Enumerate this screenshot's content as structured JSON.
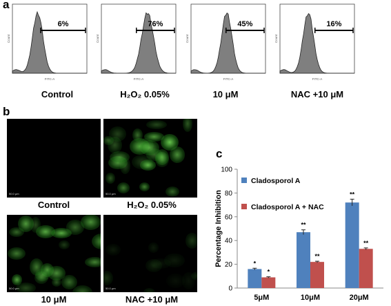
{
  "panel_a": {
    "letter": "a",
    "histograms": [
      {
        "label": "Control",
        "percent": "6%",
        "peak": 0.34,
        "spread": 0.07
      },
      {
        "label": "H₂O₂ 0.05%",
        "percent": "76%",
        "peak": 0.62,
        "spread": 0.08
      },
      {
        "label": "10 μM",
        "percent": "45%",
        "peak": 0.48,
        "spread": 0.07
      },
      {
        "label": "NAC +10 μM",
        "percent": "16%",
        "peak": 0.38,
        "spread": 0.07
      }
    ],
    "axis_ylabel": "Count",
    "axis_xlabel": "FITC-A"
  },
  "panel_b": {
    "letter": "b",
    "images": [
      {
        "label": "Control",
        "scale": "50.0 μm",
        "intensity": 0.0
      },
      {
        "label": "H₂O₂ 0.05%",
        "scale": "50.0 μm",
        "intensity": 0.9
      },
      {
        "label": "10 μM",
        "scale": "50.0 μm",
        "intensity": 0.75
      },
      {
        "label": "NAC +10 μM",
        "scale": "50.0 μm",
        "intensity": 0.25
      }
    ]
  },
  "panel_c": {
    "letter": "c",
    "colors": {
      "series1": "#4f81bd",
      "series2": "#c0504d"
    }
  },
  "chart_data": {
    "type": "bar",
    "title": "",
    "xlabel": "",
    "ylabel": "Percentage Inhibition",
    "categories": [
      "5μM",
      "10μM",
      "20μM"
    ],
    "ylim": [
      0,
      100
    ],
    "yticks": [
      0,
      20,
      40,
      60,
      80,
      100
    ],
    "grid": false,
    "legend_position": "top-left inside",
    "series": [
      {
        "name": "Cladosporol A",
        "values": [
          16,
          47,
          72
        ],
        "errors": [
          0.7,
          2.0,
          2.8
        ],
        "significance": [
          "*",
          "**",
          "**"
        ]
      },
      {
        "name": "Cladosporol A + NAC",
        "values": [
          9,
          22,
          33
        ],
        "errors": [
          0.5,
          0.6,
          0.8
        ],
        "significance": [
          "*",
          "**",
          "**"
        ]
      }
    ]
  }
}
